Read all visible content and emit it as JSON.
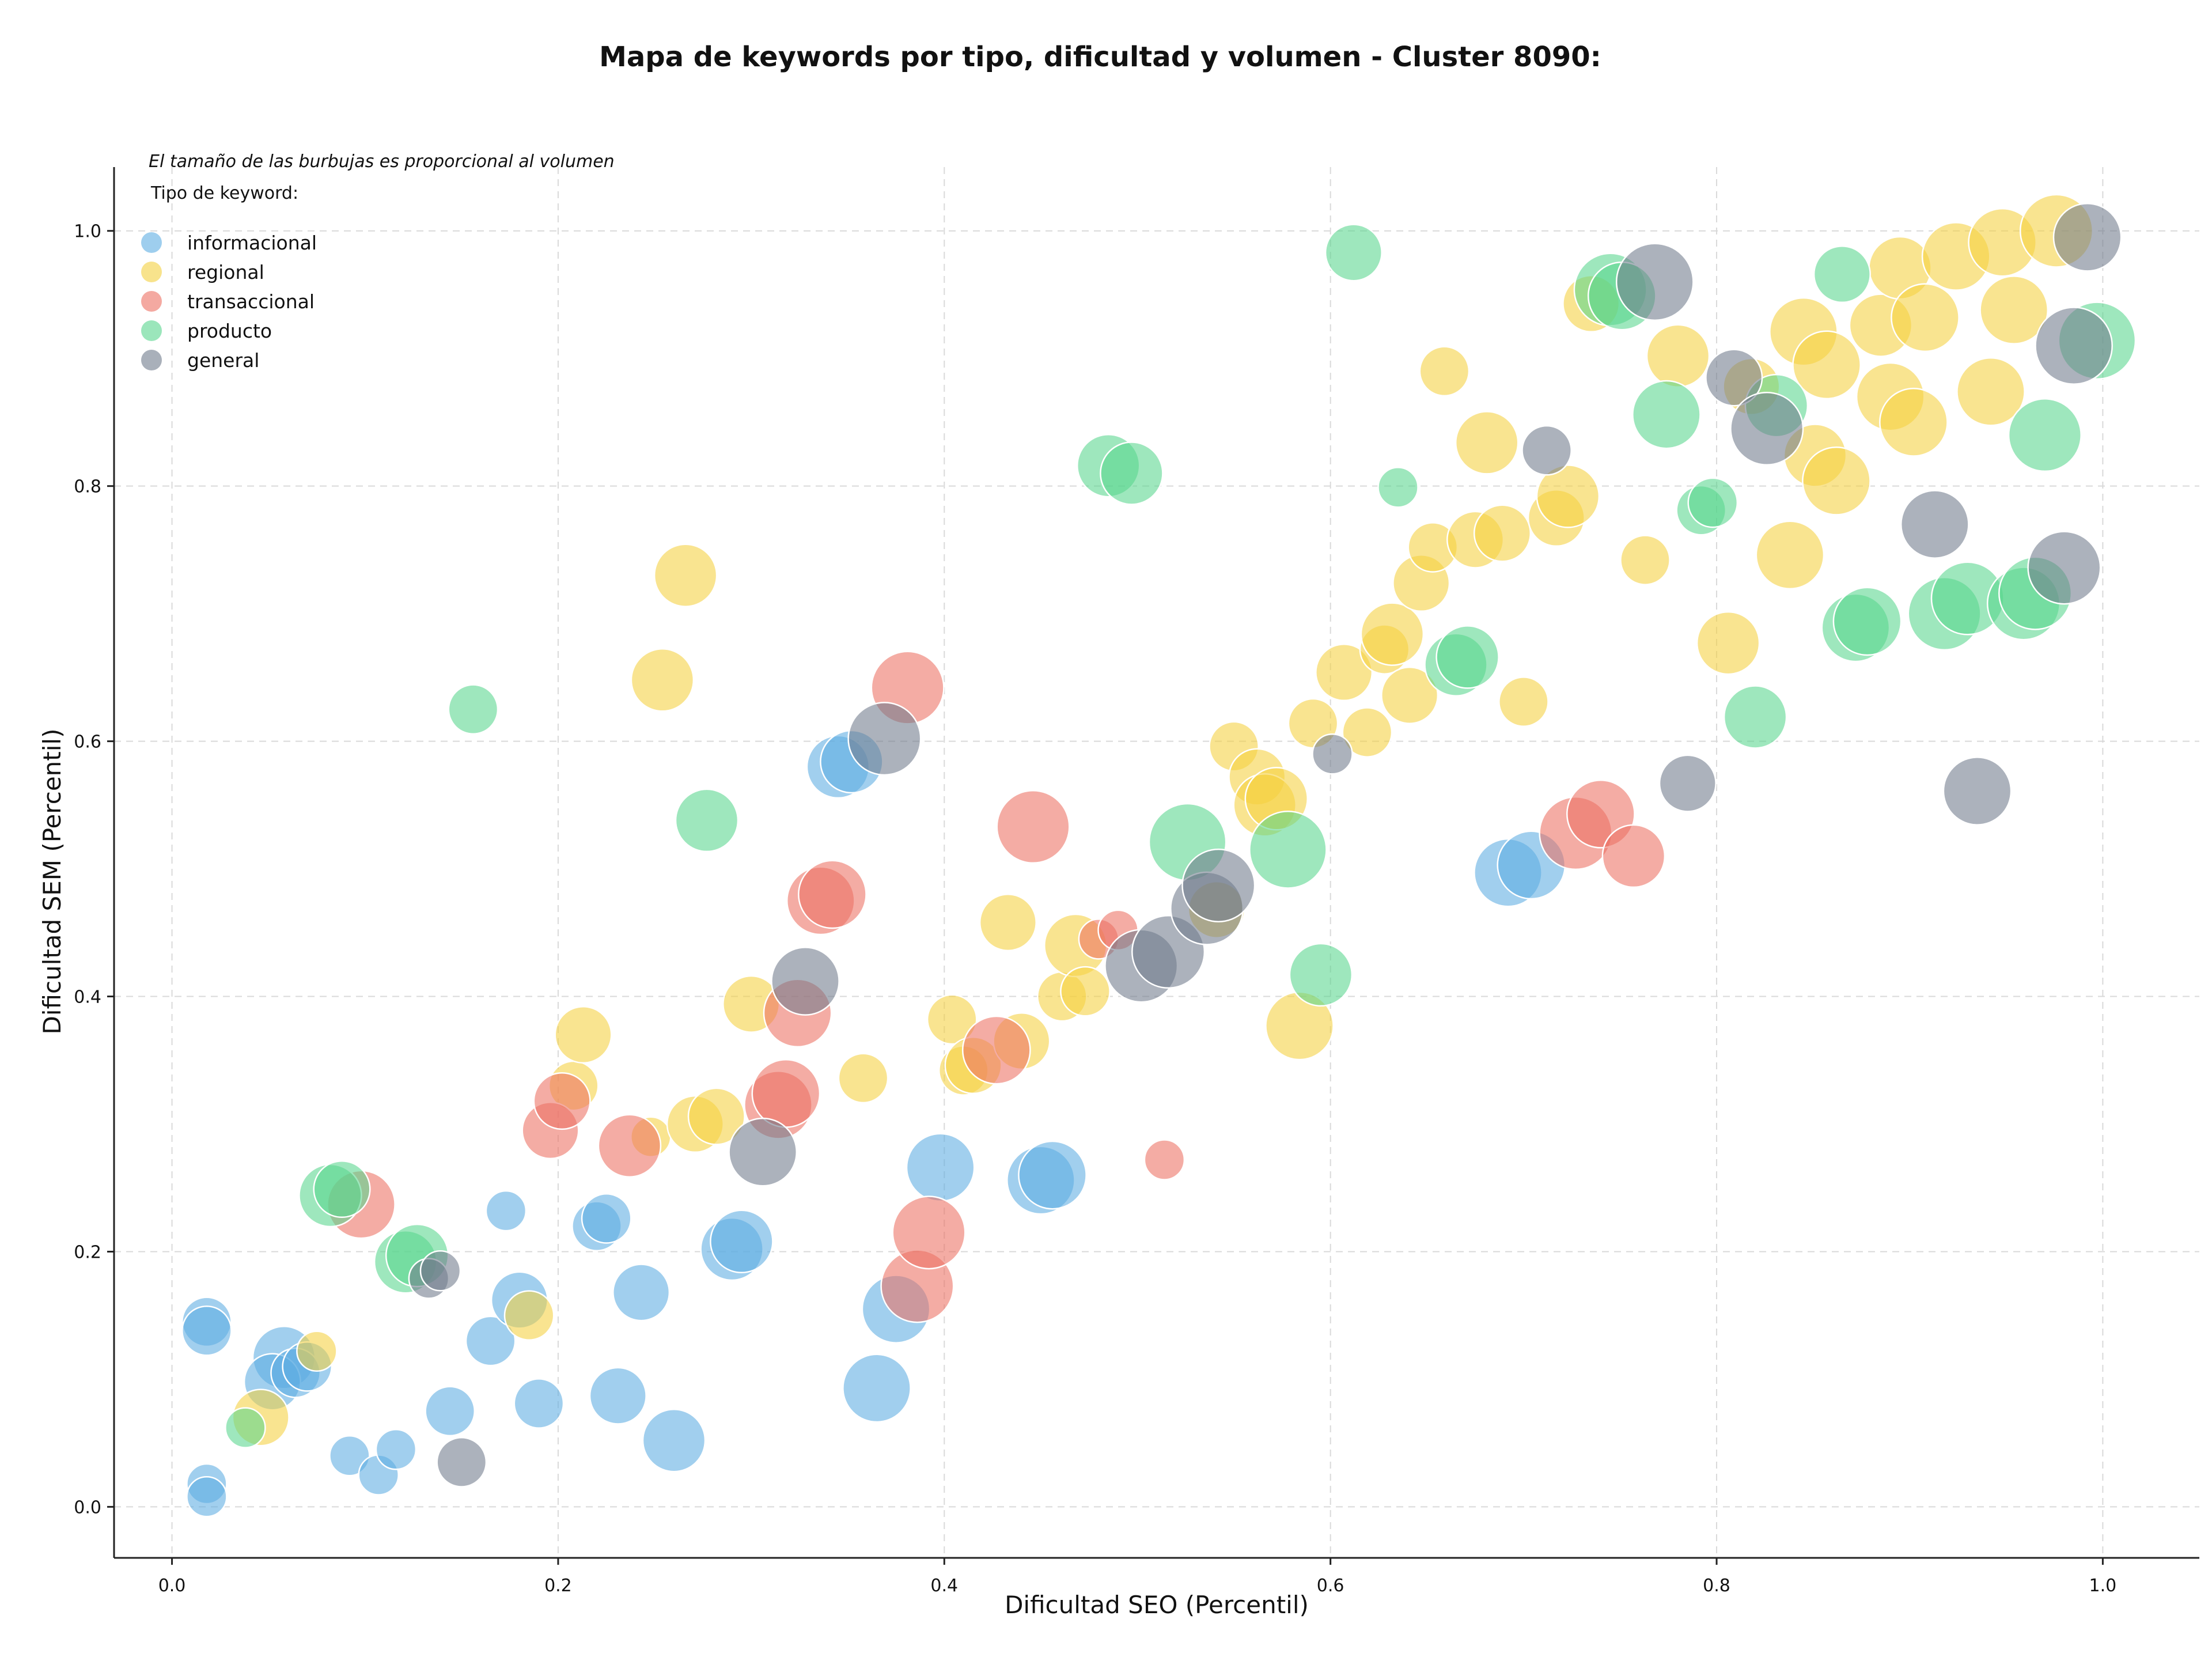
{
  "chart_data": {
    "type": "scatter",
    "title": "Mapa de keywords por tipo, dificultad y volumen - Cluster 8090:",
    "xlabel": "Dificultad SEO (Percentil)",
    "ylabel": "Dificultad SEM (Percentil)",
    "xlim": [
      -0.03,
      1.05
    ],
    "ylim": [
      -0.04,
      1.05
    ],
    "x_ticks": [
      0.0,
      0.2,
      0.4,
      0.6,
      0.8,
      1.0
    ],
    "y_ticks": [
      0.0,
      0.2,
      0.4,
      0.6,
      0.8,
      1.0
    ],
    "x_tick_labels": [
      "0.0",
      "0.2",
      "0.4",
      "0.6",
      "0.8",
      "1.0"
    ],
    "y_tick_labels": [
      "0.0",
      "0.2",
      "0.4",
      "0.6",
      "0.8",
      "1.0"
    ],
    "grid": true,
    "note": "El tamaño de las burbujas es proporcional al volumen",
    "legend_title": "Tipo de keyword:",
    "legend_position": "top-left",
    "series": [
      {
        "name": "informacional",
        "color": "#5DADE2",
        "points": [
          [
            0.018,
            0.145,
            2
          ],
          [
            0.018,
            0.138,
            2
          ],
          [
            0.018,
            0.018,
            1
          ],
          [
            0.018,
            0.008,
            1
          ],
          [
            0.058,
            0.117,
            4
          ],
          [
            0.052,
            0.098,
            3
          ],
          [
            0.064,
            0.105,
            2
          ],
          [
            0.07,
            0.11,
            2
          ],
          [
            0.092,
            0.04,
            1
          ],
          [
            0.107,
            0.025,
            1
          ],
          [
            0.116,
            0.045,
            1
          ],
          [
            0.144,
            0.075,
            2
          ],
          [
            0.165,
            0.13,
            2
          ],
          [
            0.173,
            0.232,
            1
          ],
          [
            0.18,
            0.162,
            3
          ],
          [
            0.19,
            0.081,
            2
          ],
          [
            0.22,
            0.22,
            2
          ],
          [
            0.225,
            0.226,
            2
          ],
          [
            0.231,
            0.087,
            3
          ],
          [
            0.243,
            0.168,
            3
          ],
          [
            0.26,
            0.052,
            4
          ],
          [
            0.29,
            0.202,
            4
          ],
          [
            0.295,
            0.208,
            4
          ],
          [
            0.345,
            0.58,
            4
          ],
          [
            0.352,
            0.584,
            4
          ],
          [
            0.365,
            0.093,
            5
          ],
          [
            0.375,
            0.155,
            5
          ],
          [
            0.398,
            0.266,
            5
          ],
          [
            0.45,
            0.256,
            5
          ],
          [
            0.456,
            0.26,
            5
          ],
          [
            0.692,
            0.497,
            5
          ],
          [
            0.704,
            0.503,
            5
          ]
        ]
      },
      {
        "name": "regional",
        "color": "#F4D03F",
        "points": [
          [
            0.046,
            0.07,
            3
          ],
          [
            0.075,
            0.122,
            1
          ],
          [
            0.185,
            0.15,
            2
          ],
          [
            0.208,
            0.33,
            2
          ],
          [
            0.213,
            0.37,
            3
          ],
          [
            0.248,
            0.29,
            1
          ],
          [
            0.254,
            0.648,
            4
          ],
          [
            0.266,
            0.73,
            4
          ],
          [
            0.271,
            0.3,
            3
          ],
          [
            0.282,
            0.306,
            3
          ],
          [
            0.3,
            0.394,
            3
          ],
          [
            0.358,
            0.336,
            2
          ],
          [
            0.404,
            0.382,
            2
          ],
          [
            0.41,
            0.342,
            2
          ],
          [
            0.415,
            0.346,
            3
          ],
          [
            0.433,
            0.458,
            3
          ],
          [
            0.44,
            0.365,
            3
          ],
          [
            0.461,
            0.4,
            2
          ],
          [
            0.468,
            0.44,
            4
          ],
          [
            0.473,
            0.404,
            2
          ],
          [
            0.541,
            0.468,
            3
          ],
          [
            0.55,
            0.596,
            2
          ],
          [
            0.562,
            0.572,
            3
          ],
          [
            0.566,
            0.55,
            4
          ],
          [
            0.572,
            0.555,
            4
          ],
          [
            0.584,
            0.377,
            5
          ],
          [
            0.591,
            0.614,
            2
          ],
          [
            0.607,
            0.654,
            3
          ],
          [
            0.619,
            0.607,
            2
          ],
          [
            0.628,
            0.672,
            2
          ],
          [
            0.632,
            0.684,
            4
          ],
          [
            0.641,
            0.636,
            3
          ],
          [
            0.647,
            0.724,
            3
          ],
          [
            0.653,
            0.752,
            2
          ],
          [
            0.659,
            0.89,
            2
          ],
          [
            0.675,
            0.758,
            3
          ],
          [
            0.681,
            0.834,
            4
          ],
          [
            0.689,
            0.763,
            3
          ],
          [
            0.7,
            0.631,
            2
          ],
          [
            0.717,
            0.775,
            3
          ],
          [
            0.723,
            0.792,
            4
          ],
          [
            0.735,
            0.943,
            3
          ],
          [
            0.763,
            0.742,
            2
          ],
          [
            0.78,
            0.902,
            4
          ],
          [
            0.806,
            0.677,
            4
          ],
          [
            0.818,
            0.878,
            3
          ],
          [
            0.838,
            0.746,
            5
          ],
          [
            0.845,
            0.921,
            5
          ],
          [
            0.851,
            0.824,
            4
          ],
          [
            0.857,
            0.895,
            5
          ],
          [
            0.862,
            0.804,
            5
          ],
          [
            0.885,
            0.926,
            4
          ],
          [
            0.89,
            0.87,
            5
          ],
          [
            0.895,
            0.971,
            4
          ],
          [
            0.902,
            0.85,
            5
          ],
          [
            0.908,
            0.932,
            5
          ],
          [
            0.924,
            0.98,
            5
          ],
          [
            0.942,
            0.874,
            5
          ],
          [
            0.948,
            0.991,
            5
          ],
          [
            0.954,
            0.938,
            5
          ],
          [
            0.976,
            1.0,
            6
          ]
        ]
      },
      {
        "name": "transaccional",
        "color": "#EC7063",
        "points": [
          [
            0.098,
            0.237,
            5
          ],
          [
            0.196,
            0.295,
            3
          ],
          [
            0.202,
            0.318,
            3
          ],
          [
            0.237,
            0.283,
            4
          ],
          [
            0.314,
            0.315,
            5
          ],
          [
            0.318,
            0.324,
            5
          ],
          [
            0.324,
            0.387,
            5
          ],
          [
            0.336,
            0.475,
            5
          ],
          [
            0.342,
            0.48,
            5
          ],
          [
            0.381,
            0.642,
            6
          ],
          [
            0.386,
            0.173,
            6
          ],
          [
            0.392,
            0.215,
            6
          ],
          [
            0.427,
            0.358,
            5
          ],
          [
            0.446,
            0.533,
            6
          ],
          [
            0.48,
            0.445,
            1
          ],
          [
            0.49,
            0.452,
            1
          ],
          [
            0.514,
            0.272,
            1
          ],
          [
            0.727,
            0.528,
            6
          ],
          [
            0.74,
            0.543,
            5
          ],
          [
            0.757,
            0.51,
            4
          ]
        ]
      },
      {
        "name": "producto",
        "color": "#58D68D",
        "points": [
          [
            0.038,
            0.062,
            1
          ],
          [
            0.082,
            0.244,
            4
          ],
          [
            0.088,
            0.249,
            3
          ],
          [
            0.121,
            0.192,
            4
          ],
          [
            0.127,
            0.197,
            4
          ],
          [
            0.156,
            0.625,
            2
          ],
          [
            0.277,
            0.538,
            4
          ],
          [
            0.485,
            0.816,
            4
          ],
          [
            0.497,
            0.81,
            4
          ],
          [
            0.526,
            0.521,
            7
          ],
          [
            0.578,
            0.515,
            7
          ],
          [
            0.595,
            0.417,
            4
          ],
          [
            0.612,
            0.983,
            3
          ],
          [
            0.635,
            0.799,
            1
          ],
          [
            0.665,
            0.66,
            4
          ],
          [
            0.671,
            0.666,
            4
          ],
          [
            0.745,
            0.954,
            6
          ],
          [
            0.751,
            0.949,
            5
          ],
          [
            0.774,
            0.856,
            5
          ],
          [
            0.792,
            0.781,
            2
          ],
          [
            0.798,
            0.787,
            2
          ],
          [
            0.82,
            0.619,
            4
          ],
          [
            0.831,
            0.863,
            4
          ],
          [
            0.865,
            0.966,
            3
          ],
          [
            0.872,
            0.689,
            5
          ],
          [
            0.878,
            0.694,
            5
          ],
          [
            0.918,
            0.7,
            6
          ],
          [
            0.93,
            0.712,
            6
          ],
          [
            0.959,
            0.708,
            6
          ],
          [
            0.965,
            0.716,
            6
          ],
          [
            0.97,
            0.84,
            6
          ],
          [
            0.997,
            0.914,
            7
          ]
        ]
      },
      {
        "name": "general",
        "color": "#707B8C",
        "points": [
          [
            0.133,
            0.179,
            1
          ],
          [
            0.139,
            0.185,
            1
          ],
          [
            0.15,
            0.035,
            2
          ],
          [
            0.306,
            0.278,
            5
          ],
          [
            0.328,
            0.412,
            5
          ],
          [
            0.369,
            0.602,
            6
          ],
          [
            0.502,
            0.424,
            6
          ],
          [
            0.516,
            0.435,
            6
          ],
          [
            0.536,
            0.469,
            6
          ],
          [
            0.542,
            0.487,
            6
          ],
          [
            0.601,
            0.59,
            1
          ],
          [
            0.712,
            0.828,
            2
          ],
          [
            0.768,
            0.96,
            7
          ],
          [
            0.785,
            0.567,
            3
          ],
          [
            0.809,
            0.885,
            3
          ],
          [
            0.826,
            0.845,
            6
          ],
          [
            0.913,
            0.77,
            5
          ],
          [
            0.935,
            0.561,
            5
          ],
          [
            0.98,
            0.736,
            6
          ],
          [
            0.985,
            0.91,
            7
          ],
          [
            0.992,
            0.995,
            5
          ]
        ]
      }
    ]
  }
}
